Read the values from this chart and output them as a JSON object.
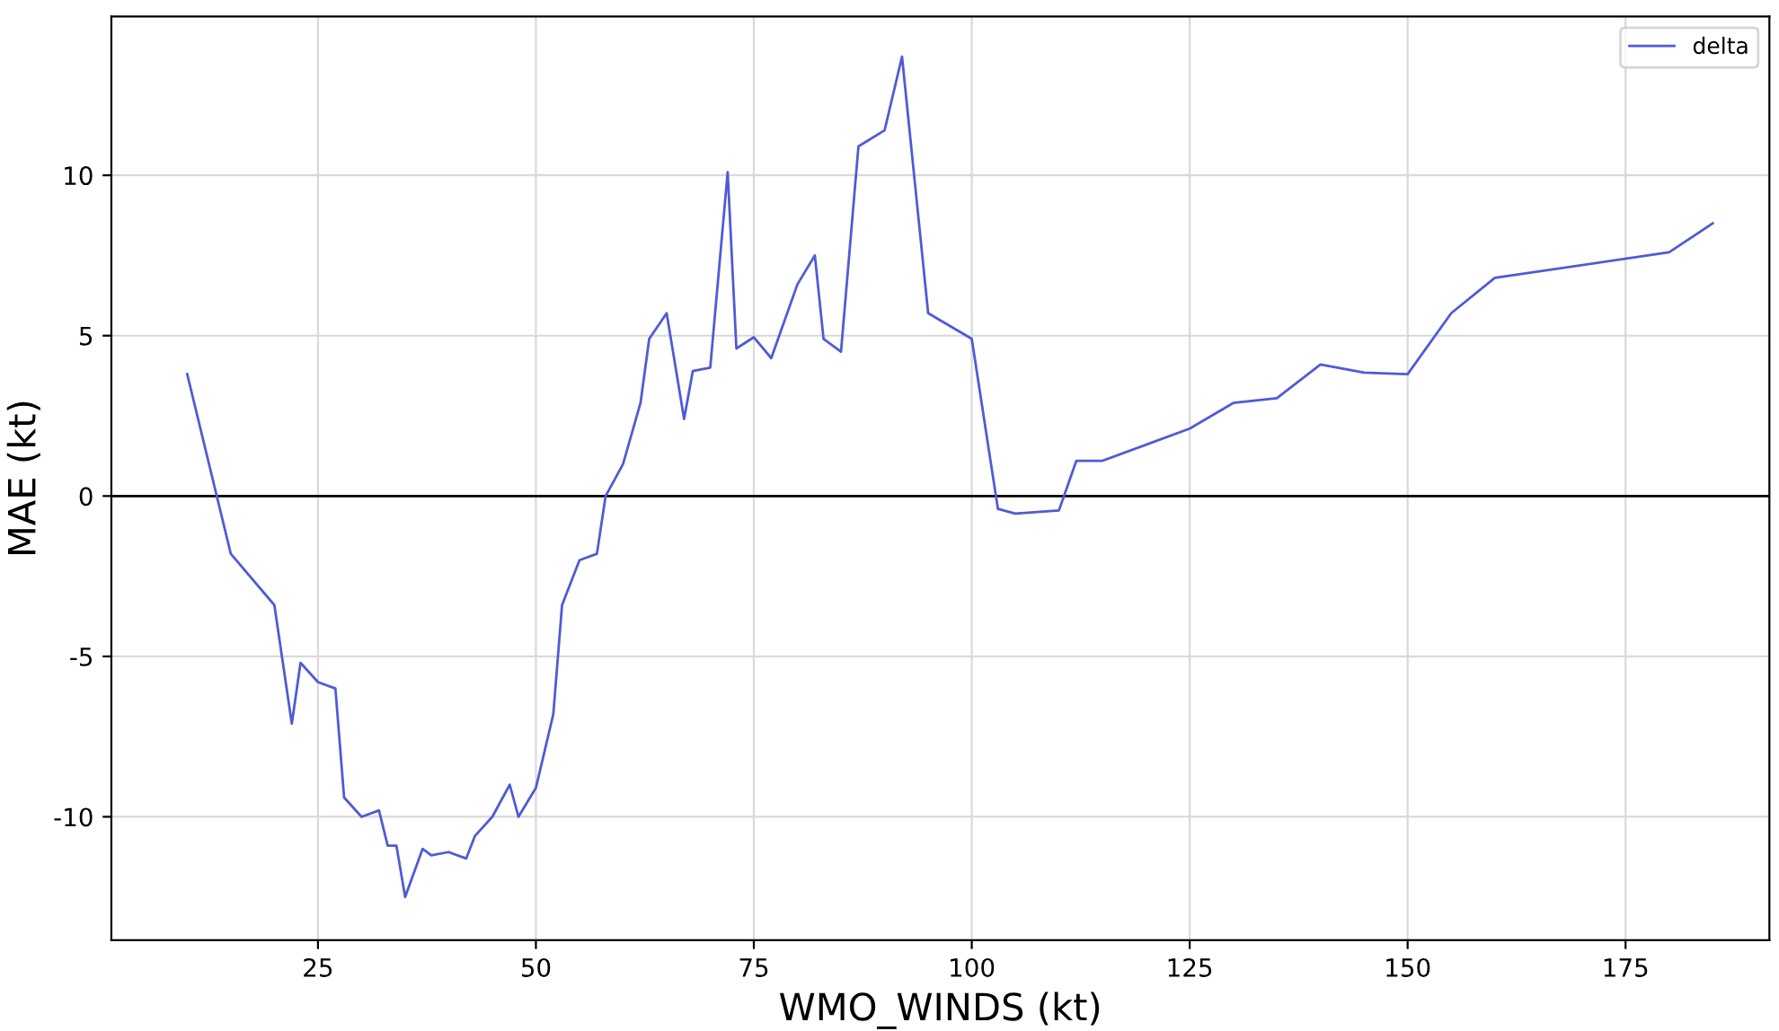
{
  "chart_data": {
    "type": "line",
    "xlabel": "WMO_WINDS (kt)",
    "ylabel": "MAE (kt)",
    "x": [
      10,
      15,
      20,
      22,
      23,
      25,
      27,
      28,
      30,
      32,
      33,
      34,
      35,
      37,
      38,
      40,
      42,
      43,
      45,
      47,
      48,
      50,
      52,
      53,
      55,
      57,
      58,
      60,
      62,
      63,
      65,
      67,
      68,
      70,
      72,
      73,
      75,
      77,
      80,
      82,
      83,
      85,
      87,
      90,
      92,
      95,
      100,
      103,
      105,
      110,
      112,
      115,
      120,
      125,
      130,
      135,
      140,
      145,
      150,
      155,
      160,
      180,
      185
    ],
    "series": [
      {
        "name": "delta",
        "color": "#4f5bd5",
        "values": [
          3.8,
          -1.8,
          -3.4,
          -7.1,
          -5.2,
          -5.8,
          -6.0,
          -9.4,
          -10.0,
          -9.8,
          -10.9,
          -10.9,
          -12.5,
          -11.0,
          -11.2,
          -11.1,
          -11.3,
          -10.6,
          -10.0,
          -9.0,
          -10.0,
          -9.1,
          -6.8,
          -3.4,
          -2.0,
          -1.8,
          0.0,
          1.0,
          2.9,
          4.9,
          5.7,
          2.4,
          3.9,
          4.0,
          10.1,
          4.6,
          4.95,
          4.3,
          6.6,
          7.5,
          4.9,
          4.5,
          10.9,
          11.4,
          13.7,
          5.7,
          4.9,
          -0.4,
          -0.55,
          -0.45,
          1.1,
          1.1,
          1.6,
          2.1,
          2.9,
          3.05,
          4.1,
          3.85,
          3.8,
          5.7,
          6.8,
          7.6,
          8.5
        ]
      }
    ],
    "xlim": [
      1.3,
      191.5
    ],
    "ylim": [
      -13.85,
      14.95
    ],
    "xticks": [
      25,
      50,
      75,
      100,
      125,
      150,
      175
    ],
    "yticks": [
      -10,
      -5,
      0,
      5,
      10
    ],
    "ref_lines": [
      {
        "axis": "y",
        "value": 0,
        "color": "#000000",
        "line_style": "solid"
      }
    ],
    "grid": true,
    "legend": "top right",
    "marker": "none",
    "line_style": "solid"
  }
}
